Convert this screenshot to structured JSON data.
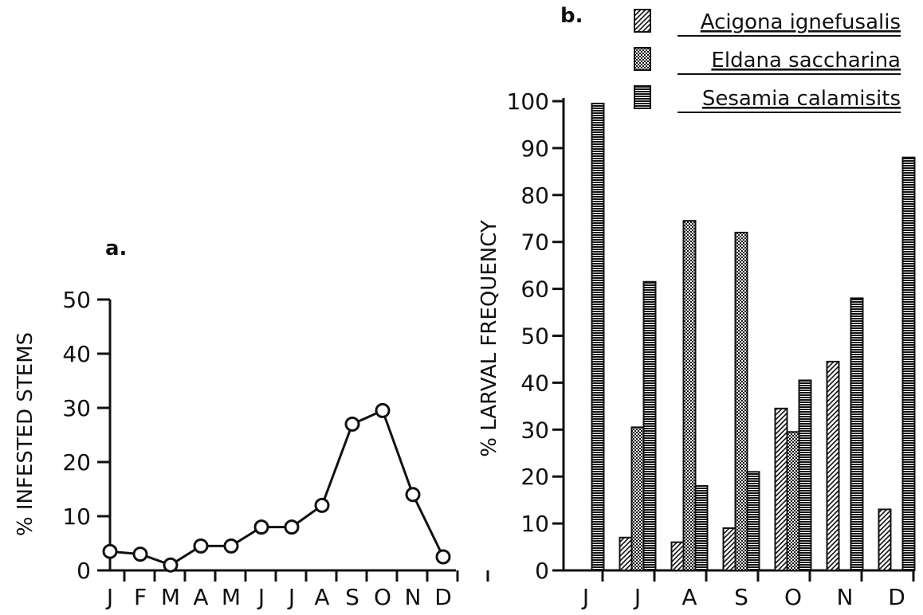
{
  "chart_data": [
    {
      "type": "line",
      "panel_label": "a.",
      "title": "",
      "xlabel": "",
      "ylabel": "% INFESTED STEMS",
      "ylim": [
        0,
        50
      ],
      "yticks": [
        0,
        10,
        20,
        30,
        40,
        50
      ],
      "categories": [
        "J",
        "F",
        "M",
        "A",
        "M",
        "J",
        "J",
        "A",
        "S",
        "O",
        "N",
        "D"
      ],
      "values": [
        3.5,
        3,
        1,
        4.5,
        4.5,
        8,
        8,
        12,
        27,
        29.5,
        14,
        2.5
      ],
      "grid": false,
      "legend": "none"
    },
    {
      "type": "bar",
      "panel_label": "b.",
      "title": "",
      "xlabel": "",
      "ylabel": "% LARVAL FREQUENCY",
      "ylim": [
        0,
        100
      ],
      "yticks": [
        0,
        10,
        20,
        30,
        40,
        50,
        60,
        70,
        80,
        90,
        100
      ],
      "categories": [
        "J",
        "J",
        "A",
        "S",
        "O",
        "N",
        "D"
      ],
      "series": [
        {
          "name": "Acigona ignefusalis",
          "pattern": "diagonal-hatch",
          "values": [
            0,
            7,
            6,
            9,
            34.5,
            44.5,
            13
          ]
        },
        {
          "name": "Eldana saccharina",
          "pattern": "dots",
          "values": [
            0,
            30.5,
            74.5,
            72,
            29.5,
            0,
            0
          ]
        },
        {
          "name": "Sesamia calamisits",
          "pattern": "horizontal-lines",
          "values": [
            99.5,
            61.5,
            18,
            21,
            40.5,
            58,
            88
          ]
        }
      ],
      "grid": false,
      "legend": "top-right"
    }
  ],
  "colors": {
    "ink": "#111111",
    "background": "#ffffff"
  }
}
